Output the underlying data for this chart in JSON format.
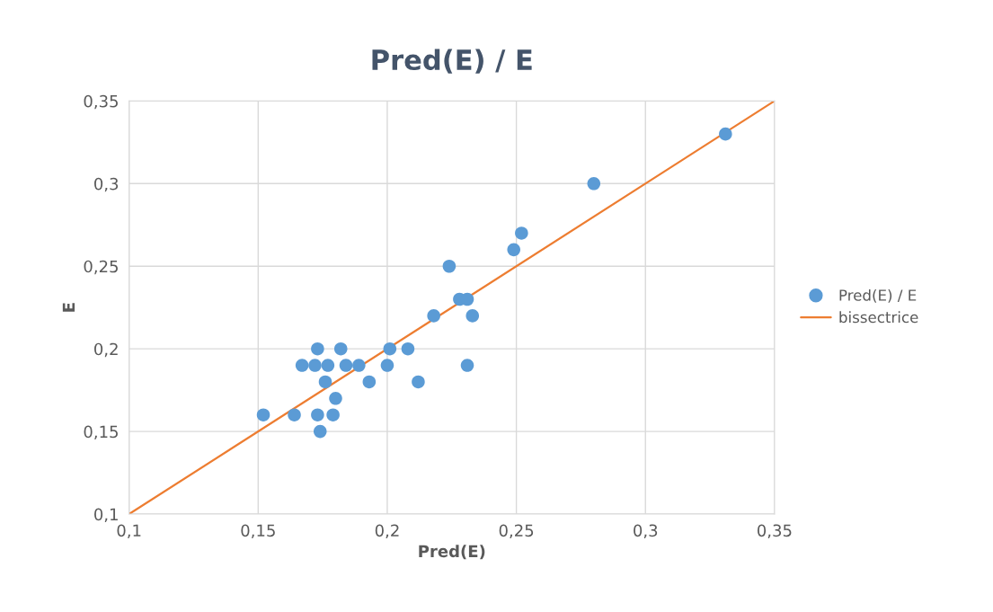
{
  "chart_data": {
    "type": "scatter",
    "title": "Pred(E) / E",
    "xlabel": "Pred(E)",
    "ylabel": "E",
    "xlim": [
      0.1,
      0.35
    ],
    "ylim": [
      0.1,
      0.35
    ],
    "xticks": [
      {
        "value": 0.1,
        "label": "0,1"
      },
      {
        "value": 0.15,
        "label": "0,15"
      },
      {
        "value": 0.2,
        "label": "0,2"
      },
      {
        "value": 0.25,
        "label": "0,25"
      },
      {
        "value": 0.3,
        "label": "0,3"
      },
      {
        "value": 0.35,
        "label": "0,35"
      }
    ],
    "yticks": [
      {
        "value": 0.1,
        "label": "0,1"
      },
      {
        "value": 0.15,
        "label": "0,15"
      },
      {
        "value": 0.2,
        "label": "0,2"
      },
      {
        "value": 0.25,
        "label": "0,25"
      },
      {
        "value": 0.3,
        "label": "0,3"
      },
      {
        "value": 0.35,
        "label": "0,35"
      }
    ],
    "grid": true,
    "legend": "right",
    "series": [
      {
        "name": "Pred(E) / E",
        "marker": "circle",
        "color": "#5b9bd5",
        "x": [
          0.152,
          0.164,
          0.167,
          0.172,
          0.173,
          0.173,
          0.174,
          0.176,
          0.177,
          0.179,
          0.18,
          0.182,
          0.184,
          0.189,
          0.193,
          0.2,
          0.201,
          0.208,
          0.212,
          0.218,
          0.224,
          0.228,
          0.231,
          0.231,
          0.233,
          0.249,
          0.252,
          0.28,
          0.331
        ],
        "values": [
          0.16,
          0.16,
          0.19,
          0.19,
          0.2,
          0.16,
          0.15,
          0.18,
          0.19,
          0.16,
          0.17,
          0.2,
          0.19,
          0.19,
          0.18,
          0.19,
          0.2,
          0.2,
          0.18,
          0.22,
          0.25,
          0.23,
          0.23,
          0.19,
          0.22,
          0.26,
          0.27,
          0.3,
          0.33
        ]
      },
      {
        "name": "bissectrice",
        "type": "line",
        "marker": "none",
        "line_style": "solid",
        "color": "#ed7d31",
        "x": [
          0.1,
          0.35
        ],
        "values": [
          0.1,
          0.35
        ]
      }
    ]
  }
}
